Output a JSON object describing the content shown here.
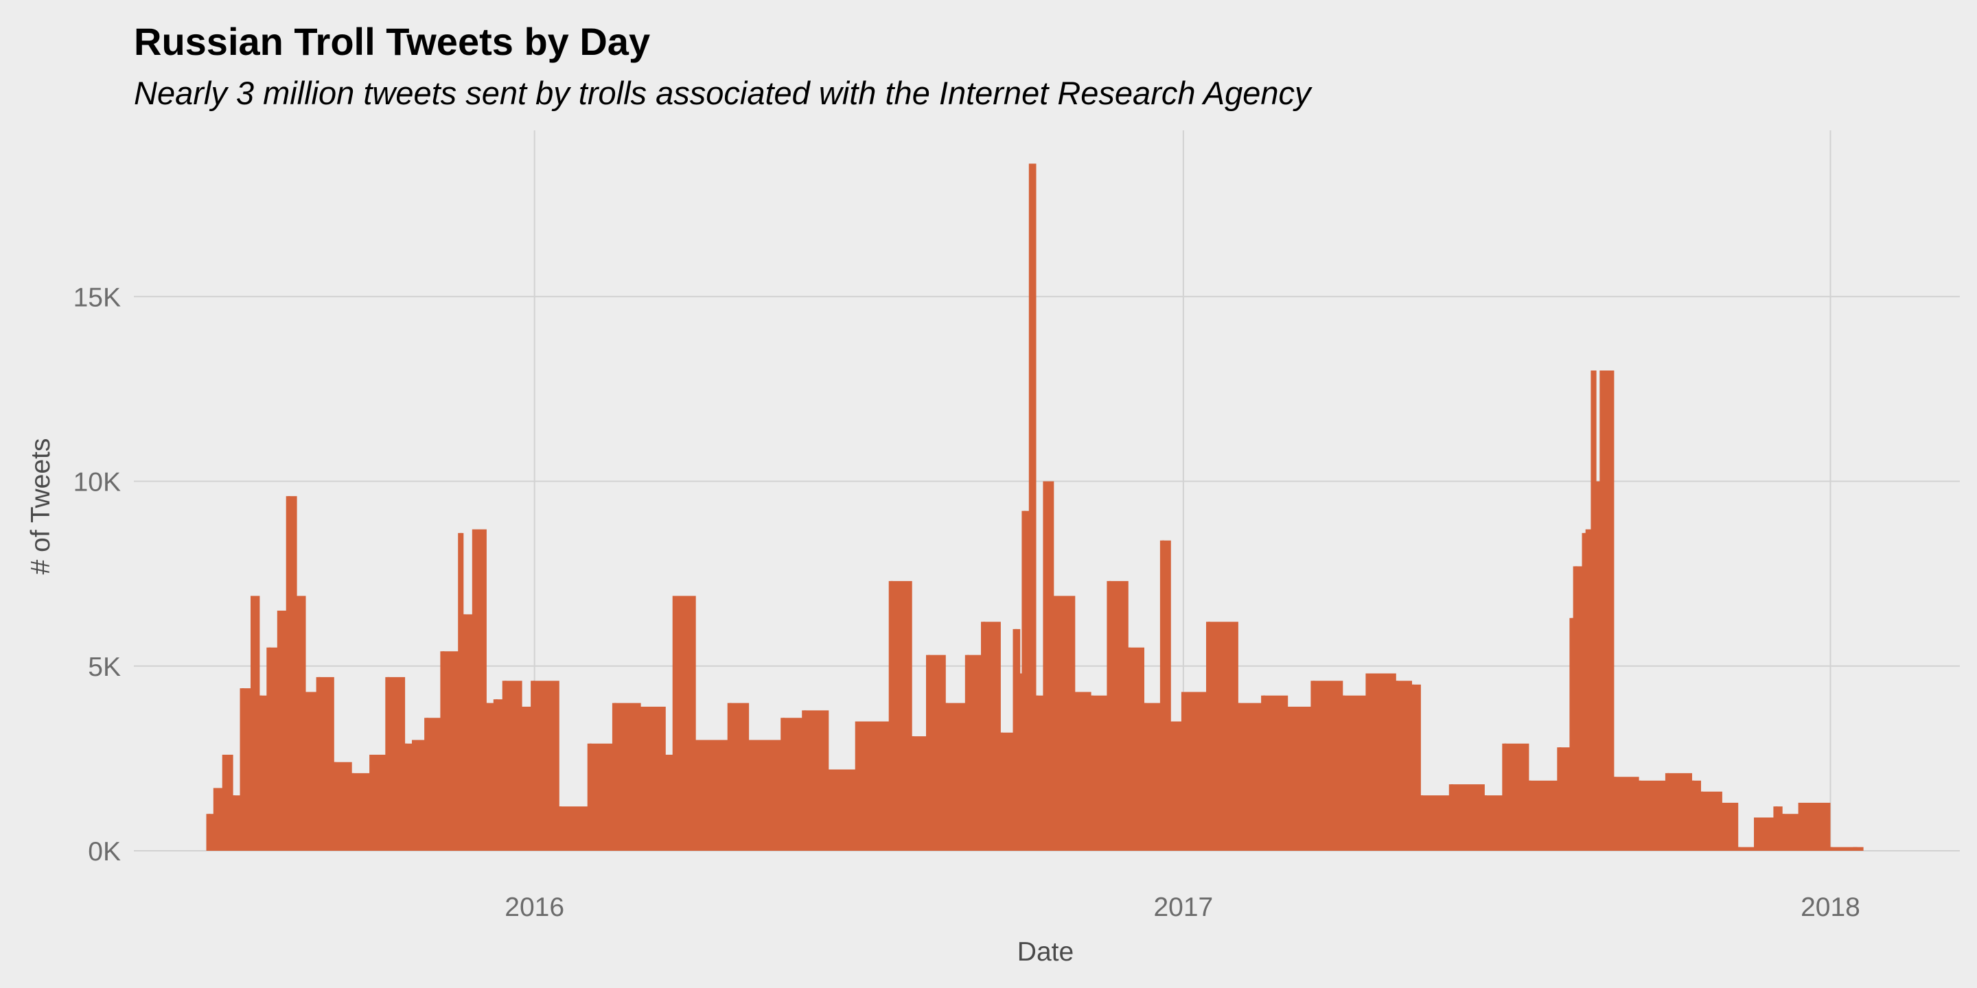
{
  "chart_data": {
    "type": "area",
    "title": "Russian Troll Tweets by Day",
    "subtitle": "Nearly 3 million tweets sent by trolls associated with the Internet Research Agency",
    "xlabel": "Date",
    "ylabel": "# of Tweets",
    "xlim": [
      "2015-05-20",
      "2018-03-15"
    ],
    "ylim": [
      0,
      19500
    ],
    "x_ticks": [
      {
        "date": "2016-01-01",
        "label": "2016"
      },
      {
        "date": "2017-01-01",
        "label": "2017"
      },
      {
        "date": "2018-01-01",
        "label": "2018"
      }
    ],
    "y_ticks": [
      {
        "value": 0,
        "label": "0K"
      },
      {
        "value": 5000,
        "label": "5K"
      },
      {
        "value": 10000,
        "label": "10K"
      },
      {
        "value": 15000,
        "label": "15K"
      }
    ],
    "grid": true,
    "legend": "none",
    "color": "#d4623a",
    "series": [
      {
        "x": [
          "2015-07-01",
          "2015-07-05",
          "2015-07-10",
          "2015-07-15",
          "2015-07-20",
          "2015-07-26",
          "2015-07-30",
          "2015-08-04",
          "2015-08-10",
          "2015-08-15",
          "2015-08-20",
          "2015-08-25",
          "2015-09-01",
          "2015-09-10",
          "2015-09-20",
          "2015-10-01",
          "2015-10-10",
          "2015-10-20",
          "2015-10-25",
          "2015-11-01",
          "2015-11-10",
          "2015-11-20",
          "2015-11-22",
          "2015-11-28",
          "2015-12-05",
          "2015-12-10",
          "2015-12-15",
          "2015-12-25",
          "2015-12-31",
          "2016-01-15",
          "2016-02-01",
          "2016-02-15",
          "2016-03-01",
          "2016-03-15",
          "2016-03-20",
          "2016-04-01",
          "2016-04-20",
          "2016-05-01",
          "2016-05-20",
          "2016-06-01",
          "2016-06-15",
          "2016-07-01",
          "2016-07-20",
          "2016-08-01",
          "2016-08-10",
          "2016-08-20",
          "2016-09-01",
          "2016-09-10",
          "2016-09-20",
          "2016-09-28",
          "2016-10-01",
          "2016-10-03",
          "2016-10-06",
          "2016-10-07",
          "2016-10-10",
          "2016-10-15",
          "2016-10-20",
          "2016-11-01",
          "2016-11-10",
          "2016-11-20",
          "2016-12-01",
          "2016-12-10",
          "2016-12-20",
          "2016-12-25",
          "2017-01-01",
          "2017-01-15",
          "2017-02-01",
          "2017-02-15",
          "2017-03-01",
          "2017-03-15",
          "2017-04-01",
          "2017-04-15",
          "2017-05-01",
          "2017-05-10",
          "2017-05-15",
          "2017-06-01",
          "2017-06-20",
          "2017-07-01",
          "2017-07-15",
          "2017-08-01",
          "2017-08-08",
          "2017-08-10",
          "2017-08-15",
          "2017-08-17",
          "2017-08-20",
          "2017-08-22",
          "2017-08-25",
          "2017-09-01",
          "2017-09-15",
          "2017-10-01",
          "2017-10-15",
          "2017-10-20",
          "2017-11-01",
          "2017-11-10",
          "2017-11-20",
          "2017-12-01",
          "2017-12-05",
          "2017-12-15",
          "2018-01-01",
          "2018-01-15"
        ],
        "values": [
          1000,
          1700,
          2600,
          1500,
          4400,
          6900,
          4200,
          5500,
          6500,
          9600,
          6900,
          4300,
          4700,
          2400,
          2100,
          2600,
          4700,
          2900,
          3000,
          3600,
          5400,
          8600,
          6400,
          8700,
          4000,
          4100,
          4600,
          3900,
          4600,
          1200,
          2900,
          4000,
          3900,
          2600,
          6900,
          3000,
          4000,
          3000,
          3600,
          3800,
          2200,
          3500,
          7300,
          3100,
          5300,
          4000,
          5300,
          6200,
          3200,
          6000,
          4800,
          9200,
          3700,
          18600,
          4200,
          10000,
          6900,
          4300,
          4200,
          7300,
          5500,
          4000,
          8400,
          3500,
          4300,
          6200,
          4000,
          4200,
          3900,
          4600,
          4200,
          4800,
          4600,
          4500,
          1500,
          1800,
          1500,
          2900,
          1900,
          2800,
          6300,
          7700,
          8600,
          8700,
          13000,
          10000,
          13000,
          2000,
          1900,
          2100,
          1900,
          1600,
          1300,
          100,
          900,
          1200,
          1000,
          1300,
          100,
          100
        ]
      }
    ]
  }
}
